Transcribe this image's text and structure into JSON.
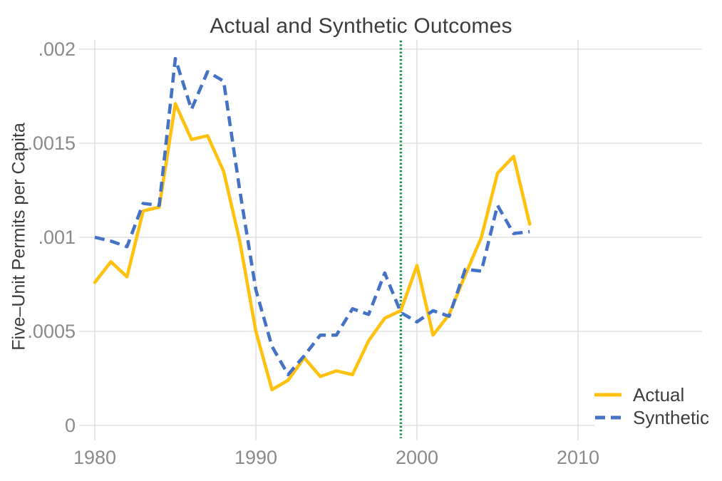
{
  "title": "Actual and Synthetic Outcomes",
  "chart_data": {
    "type": "line",
    "title": "Actual and Synthetic Outcomes",
    "xlabel": "",
    "ylabel": "Five–Unit Permits per Capita",
    "x": [
      1980,
      1981,
      1982,
      1983,
      1984,
      1985,
      1986,
      1987,
      1988,
      1989,
      1990,
      1991,
      1992,
      1993,
      1994,
      1995,
      1996,
      1997,
      1998,
      1999,
      2000,
      2001,
      2002,
      2003,
      2004,
      2005,
      2006,
      2007
    ],
    "series": [
      {
        "name": "Actual",
        "color": "#FFC110",
        "line_style": "solid",
        "values": [
          0.00076,
          0.00087,
          0.00079,
          0.00114,
          0.00116,
          0.00171,
          0.00152,
          0.00154,
          0.00135,
          0.00098,
          0.0005,
          0.00019,
          0.00024,
          0.00036,
          0.00026,
          0.00029,
          0.00027,
          0.00045,
          0.00057,
          0.00061,
          0.00085,
          0.00048,
          0.00059,
          0.0008,
          0.001,
          0.00134,
          0.00143,
          0.00107
        ]
      },
      {
        "name": "Synthetic",
        "color": "#4472C4",
        "line_style": "dashed",
        "values": [
          0.001,
          0.00098,
          0.00095,
          0.00118,
          0.00117,
          0.00195,
          0.00168,
          0.00188,
          0.00183,
          0.00125,
          0.00072,
          0.00042,
          0.00027,
          0.00037,
          0.00048,
          0.00048,
          0.00062,
          0.00059,
          0.00081,
          0.0006,
          0.00055,
          0.00061,
          0.00058,
          0.00083,
          0.00082,
          0.00117,
          0.00102,
          0.00103
        ]
      }
    ],
    "treatment_line": {
      "x": 1999,
      "color": "#12914A",
      "style": "dotted"
    },
    "x_ticks": [
      1980,
      1990,
      2000,
      2010
    ],
    "x_tick_labels": [
      "1980",
      "1990",
      "2000",
      "2010"
    ],
    "y_ticks": [
      0,
      0.0005,
      0.001,
      0.0015,
      0.002
    ],
    "y_tick_labels": [
      "0",
      ".0005",
      ".001",
      ".0015",
      ".002"
    ],
    "ylim": [
      0,
      0.002
    ],
    "xlim": [
      1980,
      2017.7
    ],
    "grid": true,
    "grid_color": "#d9d9d9",
    "tick_label_color": "#8a8a8a",
    "legend_position": "inside-bottom-right"
  },
  "legend": {
    "actual_label": "Actual",
    "synthetic_label": "Synthetic"
  }
}
